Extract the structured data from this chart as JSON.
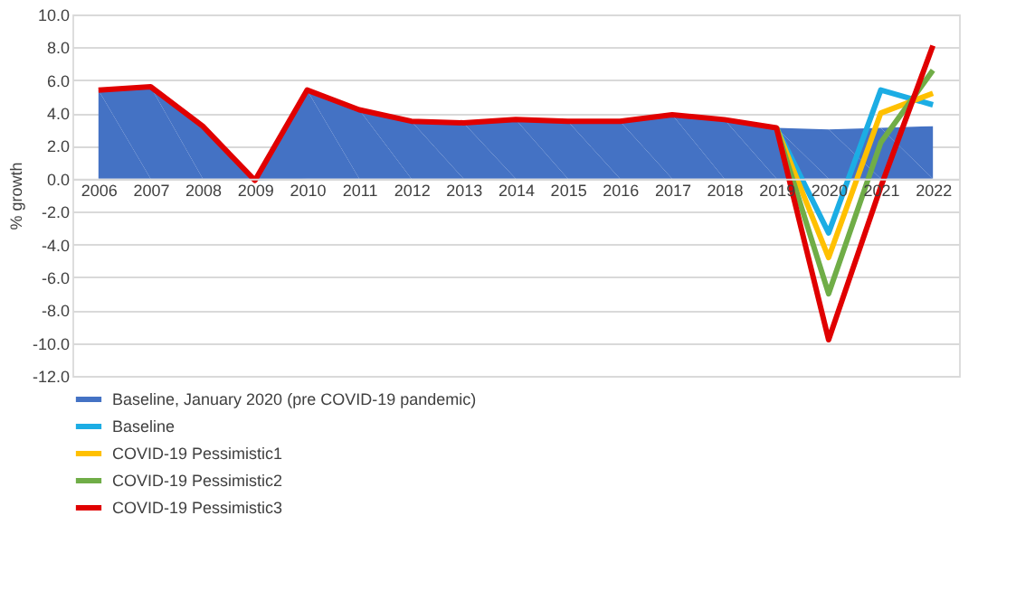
{
  "chart_data": {
    "type": "line",
    "ylabel": "% growth",
    "categories": [
      "2006",
      "2007",
      "2008",
      "2009",
      "2010",
      "2011",
      "2012",
      "2013",
      "2014",
      "2015",
      "2016",
      "2017",
      "2018",
      "2019",
      "2020",
      "2021",
      "2022"
    ],
    "series": [
      {
        "name": "Baseline, January 2020 (pre COVID-19 pandemic)",
        "type": "area",
        "color": "#4472c4",
        "values": [
          5.4,
          5.6,
          3.2,
          -0.1,
          5.4,
          4.2,
          3.5,
          3.4,
          3.6,
          3.5,
          3.5,
          3.9,
          3.6,
          3.1,
          3.0,
          3.1,
          3.2
        ]
      },
      {
        "name": "Baseline",
        "color": "#1cade4",
        "values": [
          null,
          null,
          null,
          null,
          null,
          null,
          null,
          null,
          null,
          null,
          null,
          null,
          null,
          3.1,
          -3.3,
          5.4,
          4.5
        ]
      },
      {
        "name": "COVID-19 Pessimistic1",
        "color": "#ffc000",
        "values": [
          null,
          null,
          null,
          null,
          null,
          null,
          null,
          null,
          null,
          null,
          null,
          null,
          null,
          3.1,
          -4.8,
          4.0,
          5.2
        ]
      },
      {
        "name": "COVID-19 Pessimistic2",
        "color": "#70ad47",
        "values": [
          null,
          null,
          null,
          null,
          null,
          null,
          null,
          null,
          null,
          null,
          null,
          null,
          null,
          3.1,
          -7.0,
          2.2,
          6.6
        ]
      },
      {
        "name": "COVID-19 Pessimistic3",
        "color": "#e00000",
        "values": [
          5.4,
          5.6,
          3.2,
          -0.1,
          5.4,
          4.2,
          3.5,
          3.4,
          3.6,
          3.5,
          3.5,
          3.9,
          3.6,
          3.1,
          -9.8,
          -0.5,
          8.1
        ]
      }
    ],
    "ylim": [
      -12,
      10
    ],
    "yticks": [
      {
        "value": -12,
        "label": "-12.0"
      },
      {
        "value": -10,
        "label": "-10.0"
      },
      {
        "value": -8,
        "label": "-8.0"
      },
      {
        "value": -6,
        "label": "-6.0"
      },
      {
        "value": -4,
        "label": "-4.0"
      },
      {
        "value": -2,
        "label": "-2.0"
      },
      {
        "value": 0,
        "label": "0.0"
      },
      {
        "value": 2,
        "label": "2.0"
      },
      {
        "value": 4,
        "label": "4.0"
      },
      {
        "value": 6,
        "label": "6.0"
      },
      {
        "value": 8,
        "label": "8.0"
      },
      {
        "value": 10,
        "label": "10.0"
      }
    ],
    "grid": "y",
    "legend": "bottom",
    "line_style": "solid",
    "marker": "none"
  }
}
